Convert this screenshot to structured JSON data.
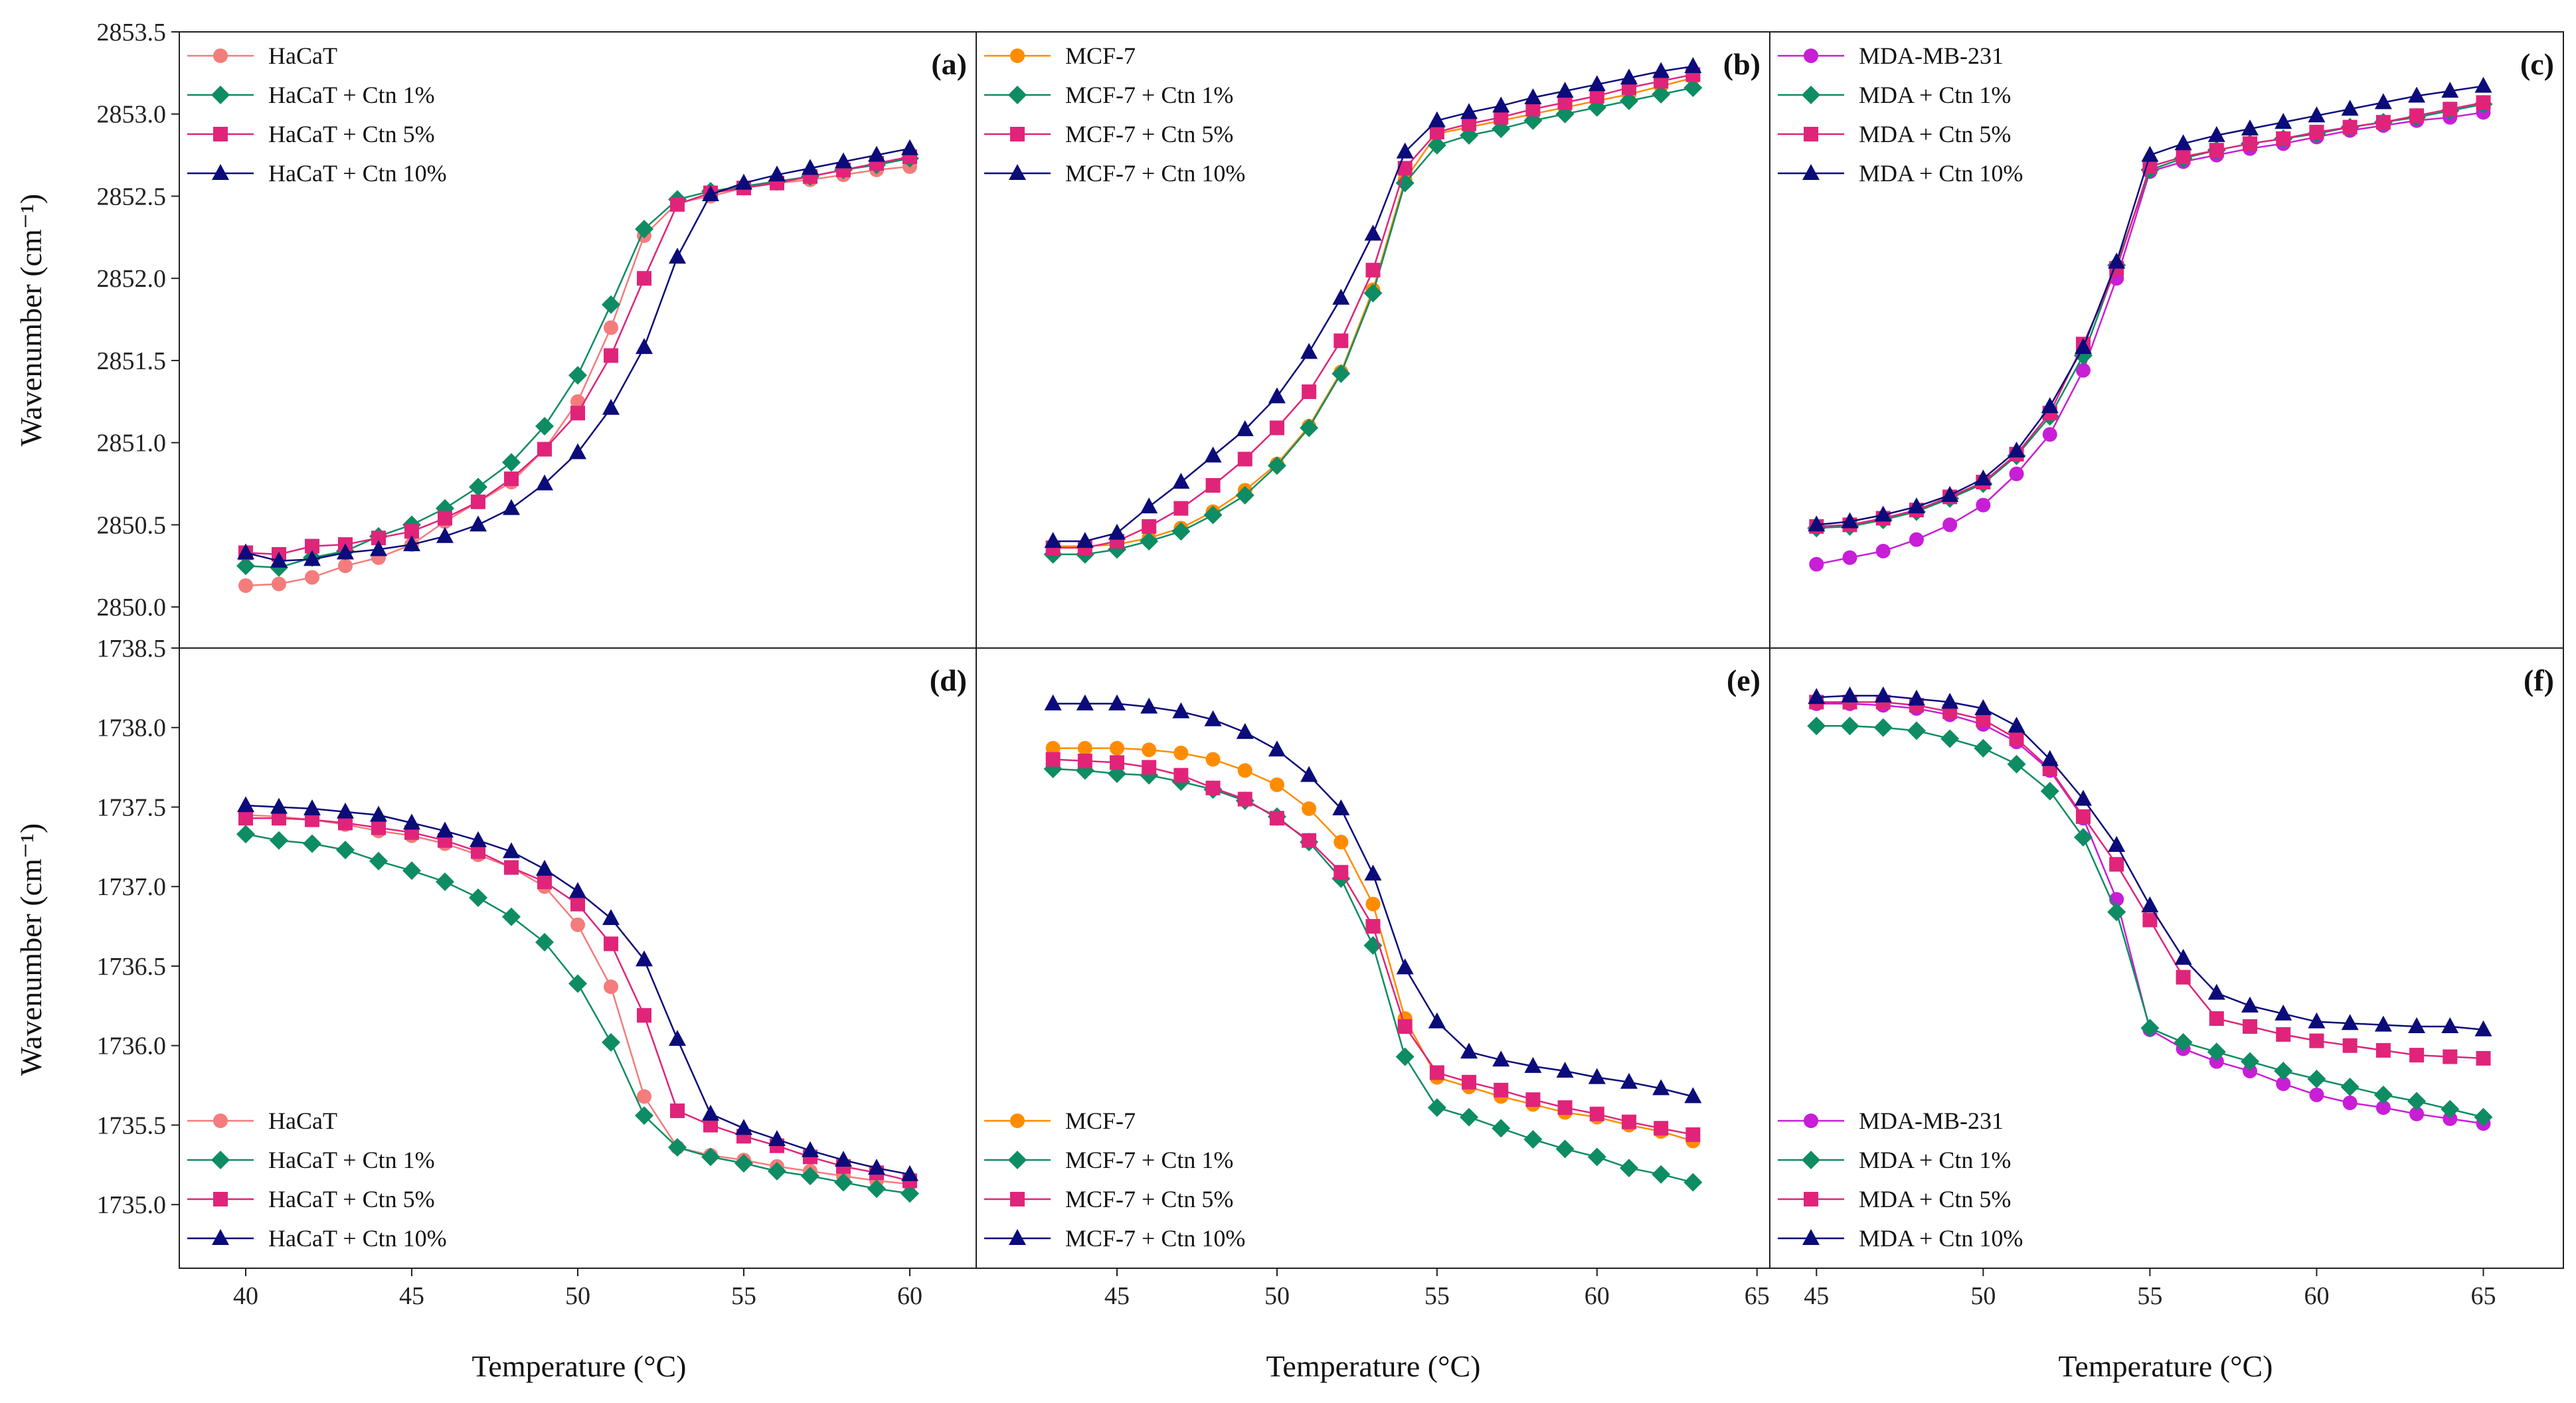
{
  "figure": {
    "ylabel_top": "Wavenumber (cm⁻¹)",
    "ylabel_bottom": "Wavenumber (cm⁻¹)",
    "xlabels": [
      "Temperature (°C)",
      "Temperature (°C)",
      "Temperature (°C)"
    ]
  },
  "colors": {
    "control": {
      "HaCaT": "#f47c7c",
      "MCF-7": "#ff8c00",
      "MDA-MB-231": "#c71ed6"
    },
    "ctn1": "#0e8c63",
    "ctn5": "#e0247a",
    "ctn10": "#0b0b7a"
  },
  "chart_data": [
    {
      "panel": "(a)",
      "type": "line",
      "row": 0,
      "col": 0,
      "xlim": [
        38,
        62
      ],
      "xticks": [
        40,
        45,
        50,
        55,
        60
      ],
      "ylim": [
        2849.75,
        2853.5
      ],
      "yticks": [
        "2850.0",
        "2850.5",
        "2851.0",
        "2851.5",
        "2852.0",
        "2852.5",
        "2853.0",
        "2853.5"
      ],
      "legend_position": "top-left",
      "x": [
        40,
        41,
        42,
        43,
        44,
        45,
        46,
        47,
        48,
        49,
        50,
        51,
        52,
        53,
        54,
        55,
        56,
        57,
        58,
        59,
        60
      ],
      "series": [
        {
          "name": "HaCaT",
          "marker": "circle",
          "color_key": "HaCaT",
          "values": [
            2850.13,
            2850.14,
            2850.18,
            2850.25,
            2850.3,
            2850.38,
            2850.52,
            2850.64,
            2850.76,
            2850.96,
            2851.25,
            2851.7,
            2852.26,
            2852.46,
            2852.5,
            2852.55,
            2852.58,
            2852.6,
            2852.63,
            2852.66,
            2852.68
          ]
        },
        {
          "name": "HaCaT + Ctn 1%",
          "marker": "diamond",
          "color_key": "ctn1",
          "values": [
            2850.25,
            2850.24,
            2850.3,
            2850.34,
            2850.43,
            2850.5,
            2850.6,
            2850.73,
            2850.88,
            2851.1,
            2851.41,
            2851.84,
            2852.3,
            2852.48,
            2852.53,
            2852.56,
            2852.59,
            2852.62,
            2852.66,
            2852.69,
            2852.73
          ]
        },
        {
          "name": "HaCaT + Ctn 5%",
          "marker": "square",
          "color_key": "ctn5",
          "values": [
            2850.33,
            2850.32,
            2850.37,
            2850.38,
            2850.42,
            2850.46,
            2850.54,
            2850.64,
            2850.78,
            2850.96,
            2851.18,
            2851.53,
            2852.0,
            2852.45,
            2852.52,
            2852.55,
            2852.58,
            2852.62,
            2852.66,
            2852.7,
            2852.74
          ]
        },
        {
          "name": "HaCaT + Ctn 10%",
          "marker": "triangle",
          "color_key": "ctn10",
          "values": [
            2850.33,
            2850.28,
            2850.29,
            2850.33,
            2850.35,
            2850.38,
            2850.43,
            2850.5,
            2850.6,
            2850.75,
            2850.94,
            2851.21,
            2851.58,
            2852.13,
            2852.51,
            2852.58,
            2852.63,
            2852.67,
            2852.71,
            2852.75,
            2852.79
          ]
        }
      ]
    },
    {
      "panel": "(b)",
      "type": "line",
      "row": 0,
      "col": 1,
      "xlim": [
        40.6,
        65.4
      ],
      "xticks": [
        45,
        50,
        55,
        60,
        65
      ],
      "ylim": [
        2849.75,
        2853.5
      ],
      "yticks": [],
      "legend_position": "top-left",
      "x": [
        43,
        44,
        45,
        46,
        47,
        48,
        49,
        50,
        51,
        52,
        53,
        54,
        55,
        56,
        57,
        58,
        59,
        60,
        61,
        62,
        63
      ],
      "series": [
        {
          "name": "MCF-7",
          "marker": "circle",
          "color_key": "MCF-7",
          "values": [
            2850.37,
            2850.37,
            2850.38,
            2850.42,
            2850.48,
            2850.58,
            2850.71,
            2850.87,
            2851.1,
            2851.43,
            2851.93,
            2852.6,
            2852.88,
            2852.92,
            2852.96,
            2853.0,
            2853.04,
            2853.08,
            2853.12,
            2853.17,
            2853.22
          ]
        },
        {
          "name": "MCF-7 + Ctn 1%",
          "marker": "diamond",
          "color_key": "ctn1",
          "values": [
            2850.32,
            2850.32,
            2850.35,
            2850.4,
            2850.46,
            2850.56,
            2850.68,
            2850.86,
            2851.09,
            2851.42,
            2851.91,
            2852.58,
            2852.81,
            2852.87,
            2852.91,
            2852.96,
            2853.0,
            2853.04,
            2853.08,
            2853.12,
            2853.16
          ]
        },
        {
          "name": "MCF-7 + Ctn 5%",
          "marker": "square",
          "color_key": "ctn5",
          "values": [
            2850.36,
            2850.36,
            2850.4,
            2850.49,
            2850.6,
            2850.74,
            2850.9,
            2851.09,
            2851.31,
            2851.62,
            2852.05,
            2852.67,
            2852.89,
            2852.94,
            2852.98,
            2853.03,
            2853.07,
            2853.11,
            2853.16,
            2853.2,
            2853.24
          ]
        },
        {
          "name": "MCF-7 + Ctn 10%",
          "marker": "triangle",
          "color_key": "ctn10",
          "values": [
            2850.4,
            2850.4,
            2850.45,
            2850.61,
            2850.76,
            2850.92,
            2851.08,
            2851.28,
            2851.55,
            2851.88,
            2852.27,
            2852.77,
            2852.96,
            2853.01,
            2853.05,
            2853.1,
            2853.14,
            2853.18,
            2853.22,
            2853.26,
            2853.29
          ]
        }
      ]
    },
    {
      "panel": "(c)",
      "type": "line",
      "row": 0,
      "col": 2,
      "xlim": [
        43.6,
        67.4
      ],
      "xticks": [
        45,
        50,
        55,
        60,
        65
      ],
      "ylim": [
        2849.75,
        2853.5
      ],
      "yticks": [],
      "legend_position": "top-left",
      "x": [
        45,
        46,
        47,
        48,
        49,
        50,
        51,
        52,
        53,
        54,
        55,
        56,
        57,
        58,
        59,
        60,
        61,
        62,
        63,
        64,
        65
      ],
      "series": [
        {
          "name": "MDA-MB-231",
          "marker": "circle",
          "color_key": "MDA-MB-231",
          "values": [
            2850.26,
            2850.3,
            2850.34,
            2850.41,
            2850.5,
            2850.62,
            2850.81,
            2851.05,
            2851.44,
            2852.0,
            2852.65,
            2852.71,
            2852.75,
            2852.79,
            2852.82,
            2852.86,
            2852.9,
            2852.93,
            2852.96,
            2852.98,
            2853.01
          ]
        },
        {
          "name": "MDA + Ctn 1%",
          "marker": "diamond",
          "color_key": "ctn1",
          "values": [
            2850.48,
            2850.49,
            2850.53,
            2850.58,
            2850.66,
            2850.75,
            2850.92,
            2851.16,
            2851.53,
            2852.08,
            2852.66,
            2852.73,
            2852.78,
            2852.82,
            2852.85,
            2852.88,
            2852.92,
            2852.95,
            2852.98,
            2853.02,
            2853.06
          ]
        },
        {
          "name": "MDA + Ctn 5%",
          "marker": "square",
          "color_key": "ctn5",
          "values": [
            2850.49,
            2850.5,
            2850.54,
            2850.59,
            2850.67,
            2850.76,
            2850.93,
            2851.18,
            2851.6,
            2852.06,
            2852.68,
            2852.74,
            2852.78,
            2852.82,
            2852.85,
            2852.89,
            2852.92,
            2852.95,
            2852.99,
            2853.03,
            2853.07
          ]
        },
        {
          "name": "MDA + Ctn 10%",
          "marker": "triangle",
          "color_key": "ctn10",
          "values": [
            2850.5,
            2850.52,
            2850.56,
            2850.61,
            2850.68,
            2850.78,
            2850.95,
            2851.22,
            2851.58,
            2852.1,
            2852.75,
            2852.82,
            2852.87,
            2852.91,
            2852.95,
            2852.99,
            2853.03,
            2853.07,
            2853.11,
            2853.14,
            2853.17
          ]
        }
      ]
    },
    {
      "panel": "(d)",
      "type": "line",
      "row": 1,
      "col": 0,
      "xlim": [
        38,
        62
      ],
      "xticks": [
        40,
        45,
        50,
        55,
        60
      ],
      "ylim": [
        1734.6,
        1738.5
      ],
      "yticks": [
        "1735.0",
        "1735.5",
        "1736.0",
        "1736.5",
        "1737.0",
        "1737.5",
        "1738.0",
        "1738.5"
      ],
      "legend_position": "bottom-left",
      "x": [
        40,
        41,
        42,
        43,
        44,
        45,
        46,
        47,
        48,
        49,
        50,
        51,
        52,
        53,
        54,
        55,
        56,
        57,
        58,
        59,
        60
      ],
      "series": [
        {
          "name": "HaCaT",
          "marker": "circle",
          "color_key": "HaCaT",
          "values": [
            1737.45,
            1737.44,
            1737.42,
            1737.39,
            1737.35,
            1737.32,
            1737.27,
            1737.2,
            1737.12,
            1737.0,
            1736.76,
            1736.37,
            1735.68,
            1735.36,
            1735.31,
            1735.28,
            1735.24,
            1735.21,
            1735.18,
            1735.15,
            1735.13
          ]
        },
        {
          "name": "HaCaT + Ctn 1%",
          "marker": "diamond",
          "color_key": "ctn1",
          "values": [
            1737.33,
            1737.29,
            1737.27,
            1737.23,
            1737.16,
            1737.1,
            1737.03,
            1736.93,
            1736.81,
            1736.65,
            1736.39,
            1736.02,
            1735.56,
            1735.36,
            1735.3,
            1735.26,
            1735.21,
            1735.18,
            1735.14,
            1735.1,
            1735.07
          ]
        },
        {
          "name": "HaCaT + Ctn 5%",
          "marker": "square",
          "color_key": "ctn5",
          "values": [
            1737.43,
            1737.43,
            1737.42,
            1737.4,
            1737.37,
            1737.34,
            1737.29,
            1737.22,
            1737.12,
            1737.03,
            1736.89,
            1736.64,
            1736.19,
            1735.59,
            1735.5,
            1735.43,
            1735.37,
            1735.3,
            1735.24,
            1735.2,
            1735.15
          ]
        },
        {
          "name": "HaCaT + Ctn 10%",
          "marker": "triangle",
          "color_key": "ctn10",
          "values": [
            1737.51,
            1737.5,
            1737.49,
            1737.47,
            1737.45,
            1737.4,
            1737.35,
            1737.29,
            1737.22,
            1737.11,
            1736.97,
            1736.8,
            1736.54,
            1736.04,
            1735.57,
            1735.48,
            1735.41,
            1735.34,
            1735.28,
            1735.23,
            1735.19
          ]
        }
      ]
    },
    {
      "panel": "(e)",
      "type": "line",
      "row": 1,
      "col": 1,
      "xlim": [
        40.6,
        65.4
      ],
      "xticks": [
        45,
        50,
        55,
        60,
        65
      ],
      "ylim": [
        1734.6,
        1738.5
      ],
      "yticks": [],
      "legend_position": "bottom-left",
      "x": [
        43,
        44,
        45,
        46,
        47,
        48,
        49,
        50,
        51,
        52,
        53,
        54,
        55,
        56,
        57,
        58,
        59,
        60,
        61,
        62,
        63
      ],
      "series": [
        {
          "name": "MCF-7",
          "marker": "circle",
          "color_key": "MCF-7",
          "values": [
            1737.87,
            1737.87,
            1737.87,
            1737.86,
            1737.84,
            1737.8,
            1737.73,
            1737.64,
            1737.49,
            1737.28,
            1736.89,
            1736.17,
            1735.8,
            1735.74,
            1735.68,
            1735.63,
            1735.58,
            1735.55,
            1735.5,
            1735.46,
            1735.4
          ]
        },
        {
          "name": "MCF-7 + Ctn 1%",
          "marker": "diamond",
          "color_key": "ctn1",
          "values": [
            1737.74,
            1737.73,
            1737.71,
            1737.7,
            1737.66,
            1737.61,
            1737.54,
            1737.44,
            1737.28,
            1737.05,
            1736.63,
            1735.93,
            1735.61,
            1735.55,
            1735.48,
            1735.41,
            1735.35,
            1735.3,
            1735.23,
            1735.19,
            1735.14
          ]
        },
        {
          "name": "MCF-7 + Ctn 5%",
          "marker": "square",
          "color_key": "ctn5",
          "values": [
            1737.8,
            1737.79,
            1737.78,
            1737.75,
            1737.7,
            1737.62,
            1737.55,
            1737.43,
            1737.29,
            1737.09,
            1736.75,
            1736.12,
            1735.83,
            1735.77,
            1735.72,
            1735.66,
            1735.61,
            1735.57,
            1735.52,
            1735.48,
            1735.44
          ]
        },
        {
          "name": "MCF-7 + Ctn 10%",
          "marker": "triangle",
          "color_key": "ctn10",
          "values": [
            1738.15,
            1738.15,
            1738.15,
            1738.13,
            1738.1,
            1738.05,
            1737.97,
            1737.86,
            1737.7,
            1737.49,
            1737.08,
            1736.49,
            1736.15,
            1735.96,
            1735.91,
            1735.87,
            1735.84,
            1735.8,
            1735.77,
            1735.73,
            1735.68
          ]
        }
      ]
    },
    {
      "panel": "(f)",
      "type": "line",
      "row": 1,
      "col": 2,
      "xlim": [
        43.6,
        67.4
      ],
      "xticks": [
        45,
        50,
        55,
        60,
        65
      ],
      "ylim": [
        1734.6,
        1738.5
      ],
      "yticks": [],
      "legend_position": "bottom-left",
      "x": [
        45,
        46,
        47,
        48,
        49,
        50,
        51,
        52,
        53,
        54,
        55,
        56,
        57,
        58,
        59,
        60,
        61,
        62,
        63,
        64,
        65
      ],
      "series": [
        {
          "name": "MDA-MB-231",
          "marker": "circle",
          "color_key": "MDA-MB-231",
          "values": [
            1738.15,
            1738.15,
            1738.14,
            1738.12,
            1738.08,
            1738.02,
            1737.91,
            1737.73,
            1737.43,
            1736.92,
            1736.1,
            1735.98,
            1735.9,
            1735.84,
            1735.76,
            1735.69,
            1735.64,
            1735.61,
            1735.57,
            1735.54,
            1735.51
          ]
        },
        {
          "name": "MDA + Ctn 1%",
          "marker": "diamond",
          "color_key": "ctn1",
          "values": [
            1738.01,
            1738.01,
            1738.0,
            1737.98,
            1737.93,
            1737.87,
            1737.77,
            1737.6,
            1737.31,
            1736.84,
            1736.11,
            1736.02,
            1735.96,
            1735.9,
            1735.84,
            1735.79,
            1735.74,
            1735.69,
            1735.65,
            1735.6,
            1735.55
          ]
        },
        {
          "name": "MDA + Ctn 5%",
          "marker": "square",
          "color_key": "ctn5",
          "values": [
            1738.16,
            1738.16,
            1738.16,
            1738.14,
            1738.1,
            1738.05,
            1737.93,
            1737.74,
            1737.44,
            1737.14,
            1736.79,
            1736.43,
            1736.17,
            1736.12,
            1736.07,
            1736.03,
            1736.0,
            1735.97,
            1735.94,
            1735.93,
            1735.92
          ]
        },
        {
          "name": "MDA + Ctn 10%",
          "marker": "triangle",
          "color_key": "ctn10",
          "values": [
            1738.19,
            1738.2,
            1738.2,
            1738.18,
            1738.16,
            1738.12,
            1738.01,
            1737.8,
            1737.55,
            1737.26,
            1736.88,
            1736.55,
            1736.33,
            1736.25,
            1736.2,
            1736.15,
            1736.14,
            1736.13,
            1736.12,
            1736.12,
            1736.1
          ]
        }
      ]
    }
  ]
}
